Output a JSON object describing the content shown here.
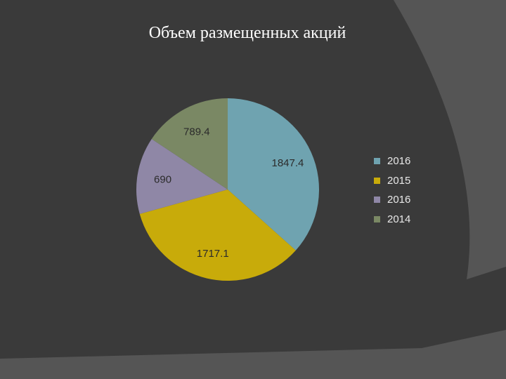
{
  "slide": {
    "title": "Объем размещенных акций"
  },
  "chart_data": {
    "type": "pie",
    "title": "Объем размещенных акций",
    "slices": [
      {
        "label": "2016",
        "value": 1847.4,
        "color": "#6fa3b0"
      },
      {
        "label": "2015",
        "value": 1717.1,
        "color": "#c8ab0a"
      },
      {
        "label": "2016",
        "value": 690,
        "color": "#8f87a6"
      },
      {
        "label": "2014",
        "value": 789.4,
        "color": "#7a8864"
      }
    ],
    "data_labels": [
      "1847.4",
      "1717.1",
      "690",
      "789.4"
    ],
    "legend": {
      "position": "right"
    }
  }
}
